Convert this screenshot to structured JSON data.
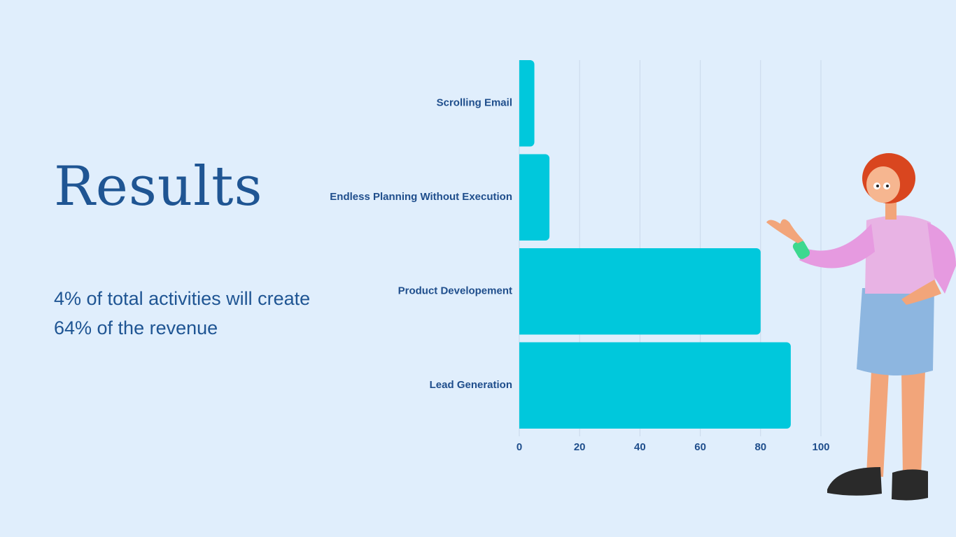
{
  "chart_data": {
    "type": "bar",
    "orientation": "horizontal",
    "title": "Results",
    "subtitle": "4% of total activities will create 64% of the revenue",
    "categories": [
      "Scrolling Email",
      "Endless Planning Without Execution",
      "Product Developement",
      "Lead Generation"
    ],
    "values": [
      5,
      10,
      80,
      90
    ],
    "color": "#00c8dc",
    "xlim": [
      0,
      100
    ],
    "xticks": [
      0,
      20,
      40,
      60,
      80,
      100
    ],
    "grid": true
  }
}
